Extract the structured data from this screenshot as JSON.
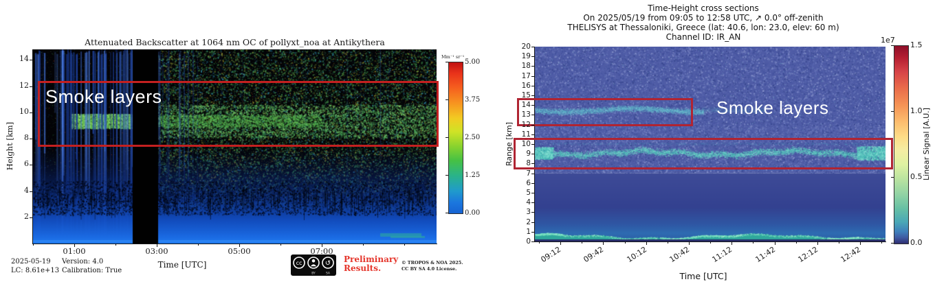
{
  "palette": {
    "figure_background": "#ffffff",
    "left_box_red": "#c42020",
    "right_box_red": "#b02432",
    "annotation_text_color": "#ffffff",
    "preliminary_red": "#e5352b"
  },
  "chart_data": [
    {
      "id": "pollyxt-quicklook",
      "type": "heatmap",
      "title": "Attenuated Backscatter at 1064 nm OC of pollyxt_noa at Antikythera",
      "xlabel": "Time [UTC]",
      "ylabel": "Height [km]",
      "x_tick_labels": [
        "01:00",
        "03:00",
        "05:00",
        "07:00"
      ],
      "y_tick_labels": [
        "14",
        "12",
        "10",
        "8",
        "6",
        "4",
        "2"
      ],
      "colorbar": {
        "label": "Mm⁻¹ sr⁻¹",
        "tick_labels": [
          "5.00",
          "3.75",
          "2.50",
          "1.25",
          "0.00"
        ],
        "colormap": "jet"
      },
      "annotation": {
        "text": "Smoke layers",
        "box_km": [
          7.8,
          12.3
        ]
      },
      "features": {
        "data_gap_utc": [
          "02:25",
          "03:02"
        ],
        "cloud_streaks_until_utc": "02:25",
        "smoke_speckle_layer_km": [
          8.1,
          12.2
        ],
        "green_aerosol_layer_km": [
          8.8,
          9.9
        ],
        "boundary_blue_top_km": 3.0
      },
      "footer": {
        "date": "2025-05-19",
        "lc": "LC: 8.61e+13",
        "version": "Version: 4.0",
        "calibration": "Calibration: True",
        "preliminary": "Preliminary Results.",
        "copyright_line1": "© TROPOS & NOA 2025.",
        "copyright_line2": "CC BY SA 4.0 License.",
        "badge": {
          "cc": "cc",
          "by": "BY",
          "sa": "SA"
        }
      }
    },
    {
      "id": "thelisys-cross-section",
      "type": "heatmap",
      "title_lines": [
        "Time-Height cross sections",
        "On 2025/05/19 from 09:05 to 12:58 UTC,  ↗ 0.0° off-zenith",
        "THELISYS at Thessaloniki, Greece (lat: 40.6, lon: 23.0, elev: 60 m)",
        "Channel ID: IR_AN"
      ],
      "xlabel": "Time [UTC]",
      "ylabel": "Range [km]",
      "x_tick_labels": [
        "09:12",
        "09:42",
        "10:12",
        "10:42",
        "11:12",
        "11:42",
        "12:12",
        "12:42"
      ],
      "y_tick_labels": [
        "20",
        "19",
        "18",
        "17",
        "16",
        "15",
        "14",
        "13",
        "12",
        "11",
        "10",
        "9",
        "8",
        "7",
        "6",
        "5",
        "4",
        "3",
        "2",
        "1",
        "0"
      ],
      "colorbar": {
        "label": "Linear Signal [A.U.]",
        "scale_label": "1e7",
        "tick_labels": [
          "1.5",
          "1.0",
          "0.5",
          "0.0"
        ],
        "colormap": "spectral_r"
      },
      "annotation": {
        "text": "Smoke layers",
        "boxes_km": [
          [
            12.8,
            14.5
          ],
          [
            7.9,
            10.8
          ]
        ]
      },
      "features": {
        "upper_smoke_layer_km": [
          13.0,
          14.0
        ],
        "upper_layer_time_span_utc": [
          "09:05",
          "10:52"
        ],
        "main_smoke_layer_km": [
          8.7,
          9.5
        ],
        "boundary_layer_km": [
          0.3,
          0.8
        ],
        "noise_free_below_km": 7
      }
    }
  ]
}
